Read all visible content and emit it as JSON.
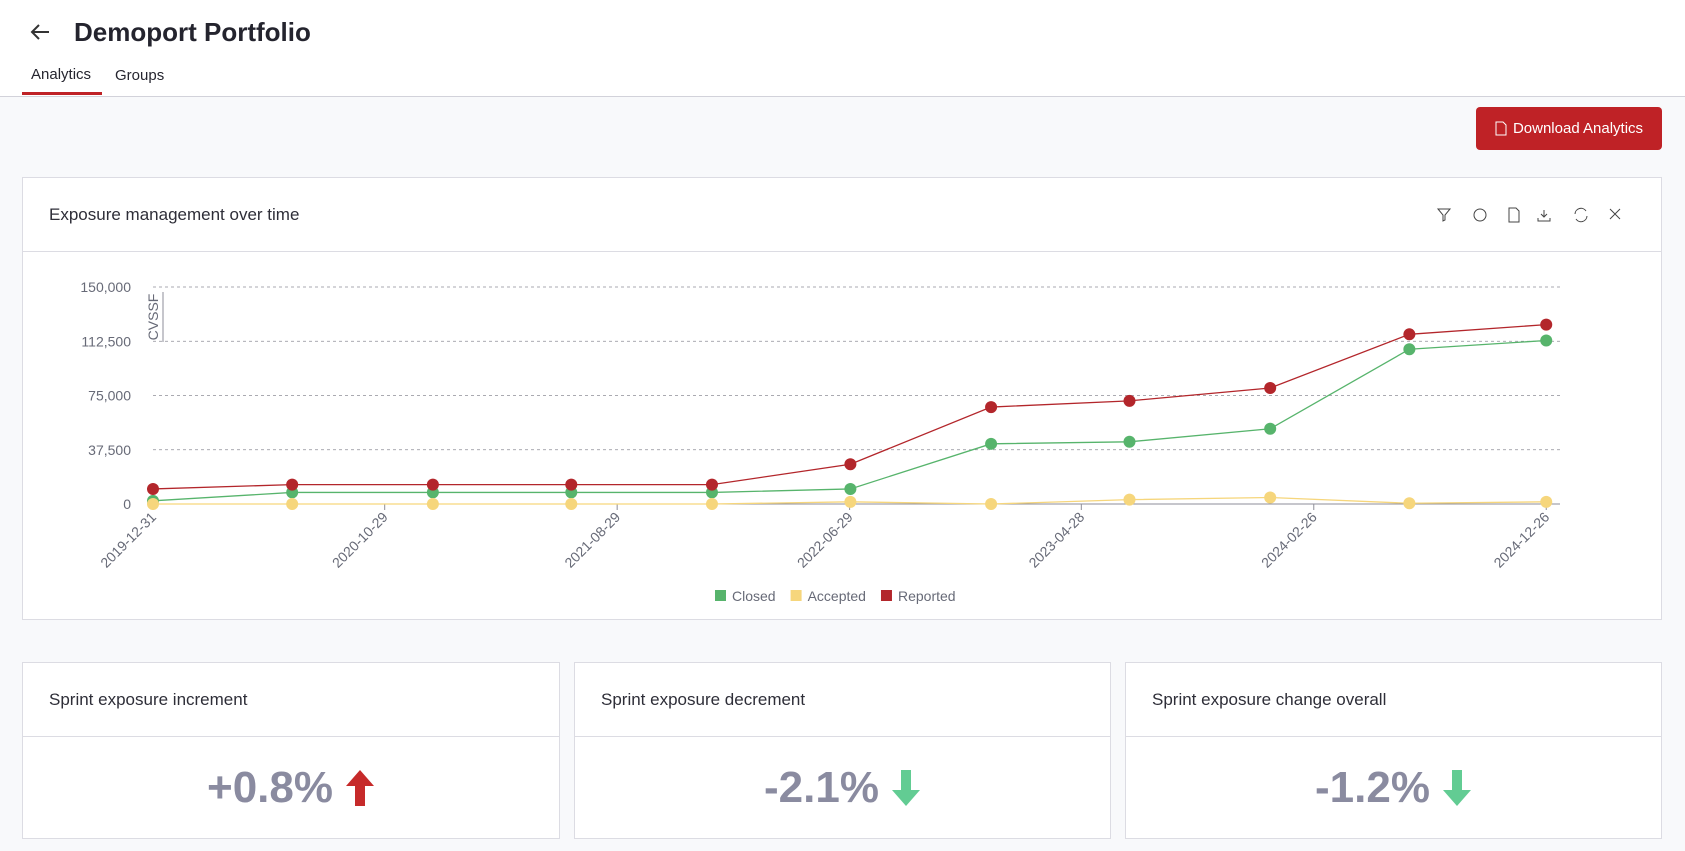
{
  "header": {
    "title": "Demoport Portfolio"
  },
  "tabs": [
    "Analytics",
    "Groups"
  ],
  "button": "Download Analytics",
  "chart_card": {
    "title": "Exposure management over time"
  },
  "chart_data": {
    "type": "line",
    "ylabel": "CVSSF",
    "x": [
      "2019-12-31",
      "2020-06-30",
      "2020-12-31",
      "2021-06-30",
      "2021-12-31",
      "2022-06-30",
      "2022-12-31",
      "2023-06-30",
      "2023-12-31",
      "2024-06-30",
      "2024-12-26"
    ],
    "xlim": [
      "2019-12-31",
      "2025-01-13"
    ],
    "xticks": [
      "2019-12-31",
      "2020-10-29",
      "2021-08-29",
      "2022-06-29",
      "2023-04-28",
      "2024-02-26",
      "2024-12-26"
    ],
    "ylim": [
      0,
      150000
    ],
    "yticks": [
      0,
      {
        "value": 37500,
        "label": "37,500"
      },
      {
        "value": 75000,
        "label": "75,000"
      },
      {
        "value": 112500,
        "label": "112,500"
      },
      {
        "value": 150000,
        "label": "150,000"
      }
    ],
    "grid": true,
    "series": [
      {
        "name": "Closed",
        "color": "#57b46c",
        "values": [
          2200,
          8000,
          8000,
          8000,
          8000,
          10400,
          41600,
          43000,
          52000,
          107000,
          113000
        ]
      },
      {
        "name": "Accepted",
        "color": "#f6d67c",
        "values": [
          0,
          0,
          0,
          0,
          0,
          1500,
          0,
          3000,
          4500,
          500,
          1500
        ]
      },
      {
        "name": "Reported",
        "color": "#b3262b",
        "values": [
          10400,
          13400,
          13400,
          13400,
          13400,
          27500,
          67000,
          71300,
          80200,
          117300,
          124000
        ]
      }
    ]
  },
  "cards": [
    {
      "title": "Sprint exposure increment",
      "value": "+0.8%"
    },
    {
      "title": "Sprint exposure decrement",
      "value": "-2.1%"
    },
    {
      "title": "Sprint exposure change overall",
      "value": "-1.2%"
    }
  ]
}
